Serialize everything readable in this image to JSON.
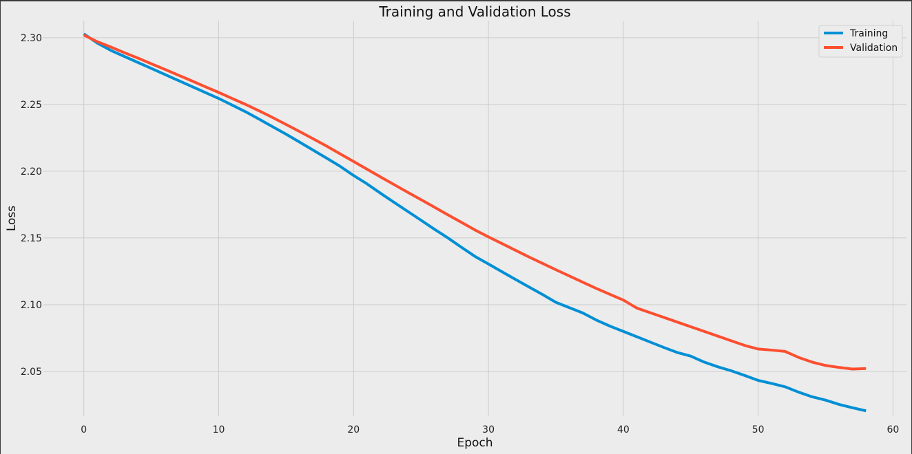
{
  "chart_data": {
    "type": "line",
    "title": "Training and Validation Loss",
    "xlabel": "Epoch",
    "ylabel": "Loss",
    "xlim": [
      -3,
      61
    ],
    "ylim": [
      2.0165,
      2.3128
    ],
    "xticks": [
      0,
      10,
      20,
      30,
      40,
      50,
      60
    ],
    "yticks": [
      2.05,
      2.1,
      2.15,
      2.2,
      2.25,
      2.3
    ],
    "ytick_labels": [
      "2.05",
      "2.10",
      "2.15",
      "2.20",
      "2.25",
      "2.30"
    ],
    "grid": true,
    "legend_position": "top-right",
    "x": [
      0,
      1,
      2,
      3,
      4,
      5,
      6,
      7,
      8,
      9,
      10,
      11,
      12,
      13,
      14,
      15,
      16,
      17,
      18,
      19,
      20,
      21,
      22,
      23,
      24,
      25,
      26,
      27,
      28,
      29,
      30,
      31,
      32,
      33,
      34,
      35,
      36,
      37,
      38,
      39,
      40,
      41,
      42,
      43,
      44,
      45,
      46,
      47,
      48,
      49,
      50,
      51,
      52,
      53,
      54,
      55,
      56,
      57,
      58
    ],
    "series": [
      {
        "name": "Training",
        "color": "#008fd5",
        "values": [
          2.3029,
          2.296,
          2.2905,
          2.286,
          2.2815,
          2.277,
          2.2725,
          2.268,
          2.2635,
          2.259,
          2.2545,
          2.2495,
          2.2445,
          2.239,
          2.2333,
          2.2277,
          2.2218,
          2.2158,
          2.2098,
          2.2037,
          2.1968,
          2.1905,
          2.1835,
          2.1767,
          2.17,
          2.1633,
          2.1565,
          2.15,
          2.143,
          2.1362,
          2.1305,
          2.1247,
          2.119,
          2.1133,
          2.1077,
          2.1018,
          2.0978,
          2.0938,
          2.0885,
          2.084,
          2.08,
          2.076,
          2.072,
          2.068,
          2.0642,
          2.0615,
          2.057,
          2.0535,
          2.0505,
          2.047,
          2.0433,
          2.041,
          2.0385,
          2.0345,
          2.031,
          2.0285,
          2.0253,
          2.0228,
          2.0205
        ]
      },
      {
        "name": "Validation",
        "color": "#fc4f30",
        "values": [
          2.302,
          2.297,
          2.293,
          2.2888,
          2.2848,
          2.2805,
          2.2763,
          2.272,
          2.2677,
          2.2633,
          2.259,
          2.2545,
          2.25,
          2.2452,
          2.2402,
          2.235,
          2.2297,
          2.2243,
          2.2188,
          2.213,
          2.2073,
          2.2015,
          2.1957,
          2.19,
          2.1843,
          2.1787,
          2.173,
          2.1673,
          2.1617,
          2.156,
          2.1508,
          2.1458,
          2.1408,
          2.1358,
          2.131,
          2.1262,
          2.1215,
          2.1168,
          2.1122,
          2.1078,
          2.1035,
          2.0975,
          2.094,
          2.0905,
          2.087,
          2.0835,
          2.08,
          2.0765,
          2.073,
          2.0695,
          2.0668,
          2.066,
          2.065,
          2.0605,
          2.057,
          2.0545,
          2.053,
          2.0518,
          2.0522
        ]
      }
    ]
  }
}
